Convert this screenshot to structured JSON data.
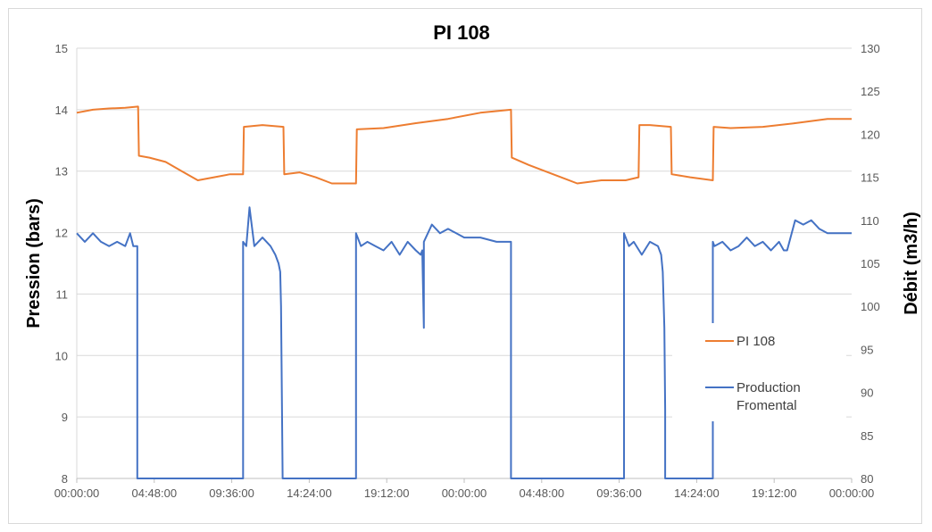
{
  "chart_data": {
    "type": "line",
    "title": "PI 108",
    "ylabel": "Pression (bars)",
    "y2label": "Débit (m3/h)",
    "ylim": [
      8,
      15
    ],
    "y2lim": [
      80,
      130
    ],
    "yticks": [
      "8",
      "9",
      "10",
      "11",
      "12",
      "13",
      "14",
      "15"
    ],
    "y2ticks": [
      "80",
      "85",
      "90",
      "95",
      "100",
      "105",
      "110",
      "115",
      "120",
      "125",
      "130"
    ],
    "xticks": [
      "00:00:00",
      "04:48:00",
      "09:36:00",
      "14:24:00",
      "19:12:00",
      "00:00:00",
      "04:48:00",
      "09:36:00",
      "14:24:00",
      "19:12:00",
      "00:00:00"
    ],
    "x_range_hours": [
      0,
      48
    ],
    "grid": true,
    "legend_position": "right",
    "colors": {
      "pressure": "#ED7D31",
      "flow": "#4472C4",
      "grid": "#d9d9d9"
    },
    "series": [
      {
        "name": "PI 108",
        "axis": "left",
        "x": [
          0,
          1,
          2,
          3,
          3.8,
          3.85,
          4.5,
          5.5,
          6.5,
          7.5,
          8.5,
          9.5,
          10.3,
          10.35,
          11.5,
          12.8,
          12.85,
          13.8,
          14.8,
          15.8,
          17.3,
          17.35,
          19,
          21,
          23,
          25,
          26.9,
          26.95,
          28,
          29.5,
          31,
          32.5,
          34,
          34.8,
          34.85,
          35.5,
          36.8,
          36.85,
          38,
          39.4,
          39.45,
          40.5,
          42.5,
          44.5,
          46.5,
          48
        ],
        "values": [
          13.95,
          14.0,
          14.02,
          14.03,
          14.05,
          13.25,
          13.22,
          13.15,
          13.0,
          12.85,
          12.9,
          12.95,
          12.95,
          13.72,
          13.75,
          13.72,
          12.95,
          12.98,
          12.9,
          12.8,
          12.8,
          13.68,
          13.7,
          13.78,
          13.85,
          13.95,
          14.0,
          13.22,
          13.1,
          12.95,
          12.8,
          12.85,
          12.85,
          12.9,
          13.75,
          13.75,
          13.72,
          12.95,
          12.9,
          12.85,
          13.72,
          13.7,
          13.72,
          13.78,
          13.85,
          13.85
        ]
      },
      {
        "name": "Production Fromental",
        "axis": "right",
        "x": [
          0,
          0.5,
          1,
          1.5,
          2,
          2.5,
          3.0,
          3.3,
          3.5,
          3.75,
          3.75,
          3.8,
          10.3,
          10.3,
          10.5,
          10.7,
          11.0,
          11.5,
          12.0,
          12.3,
          12.5,
          12.6,
          12.65,
          12.7,
          12.75,
          12.75,
          17.3,
          17.3,
          17.6,
          18.0,
          18.5,
          19.0,
          19.5,
          20.0,
          20.5,
          21.0,
          21.3,
          21.4,
          21.5,
          21.5,
          22.0,
          22.5,
          23.0,
          24.0,
          25.0,
          26.0,
          26.9,
          26.9,
          27.0,
          33.9,
          33.9,
          34.2,
          34.5,
          35.0,
          35.5,
          36.0,
          36.2,
          36.3,
          36.4,
          36.45,
          36.45,
          36.5,
          39.4,
          39.4,
          39.5,
          40.0,
          40.5,
          41.0,
          41.5,
          42.0,
          42.5,
          43.0,
          43.5,
          43.8,
          44.0,
          44.5,
          45.0,
          45.5,
          46.0,
          46.5,
          47.0,
          47.5,
          48.0
        ],
        "values": [
          108.5,
          107.5,
          108.5,
          107.5,
          107.0,
          107.5,
          107.0,
          108.5,
          107.0,
          107.0,
          80,
          80,
          80,
          107.5,
          107.0,
          111.5,
          107.0,
          108.0,
          107.0,
          106.0,
          105.0,
          104.0,
          100.0,
          90.0,
          80,
          80,
          80,
          108.5,
          107.0,
          107.5,
          107.0,
          106.5,
          107.5,
          106.0,
          107.5,
          106.5,
          106.0,
          106.5,
          97.5,
          107.5,
          109.5,
          108.5,
          109.0,
          108.0,
          108.0,
          107.5,
          107.5,
          80,
          80,
          80,
          108.5,
          107.0,
          107.5,
          106.0,
          107.5,
          107.0,
          106.0,
          104.0,
          97.5,
          88.0,
          80,
          80,
          80,
          107.5,
          107.0,
          107.5,
          106.5,
          107.0,
          108.0,
          107.0,
          107.5,
          106.5,
          107.5,
          106.5,
          106.5,
          110.0,
          109.5,
          110.0,
          109.0,
          108.5,
          108.5,
          108.5,
          108.5
        ]
      }
    ]
  }
}
